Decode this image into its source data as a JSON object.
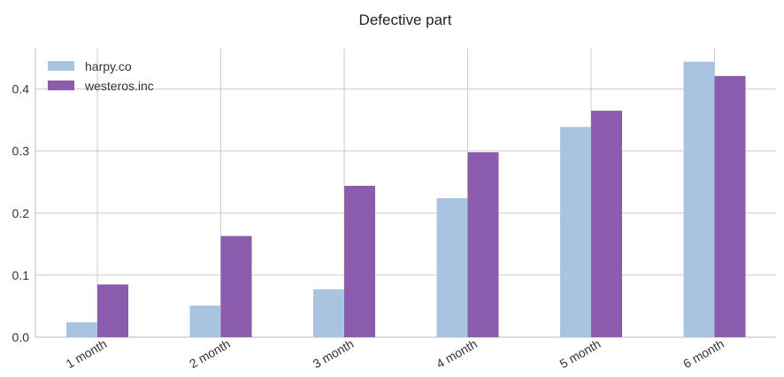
{
  "chart_data": {
    "type": "bar",
    "title": "Defective part",
    "xlabel": "",
    "ylabel": "",
    "categories": [
      "1 month",
      "2 month",
      "3 month",
      "4 month",
      "5 month",
      "6 month"
    ],
    "series": [
      {
        "name": "harpy.co",
        "color": "#a9c4e0",
        "values": [
          0.024,
          0.051,
          0.077,
          0.224,
          0.339,
          0.444
        ]
      },
      {
        "name": "westeros.inc",
        "color": "#8b5cad",
        "values": [
          0.085,
          0.163,
          0.244,
          0.298,
          0.365,
          0.421
        ]
      }
    ],
    "ylim": [
      0,
      0.465
    ],
    "yticks": [
      0.0,
      0.1,
      0.2,
      0.3,
      0.4
    ],
    "ytick_labels": [
      "0.0",
      "0.1",
      "0.2",
      "0.3",
      "0.4"
    ],
    "grid": true,
    "legend_position": "top-left"
  }
}
